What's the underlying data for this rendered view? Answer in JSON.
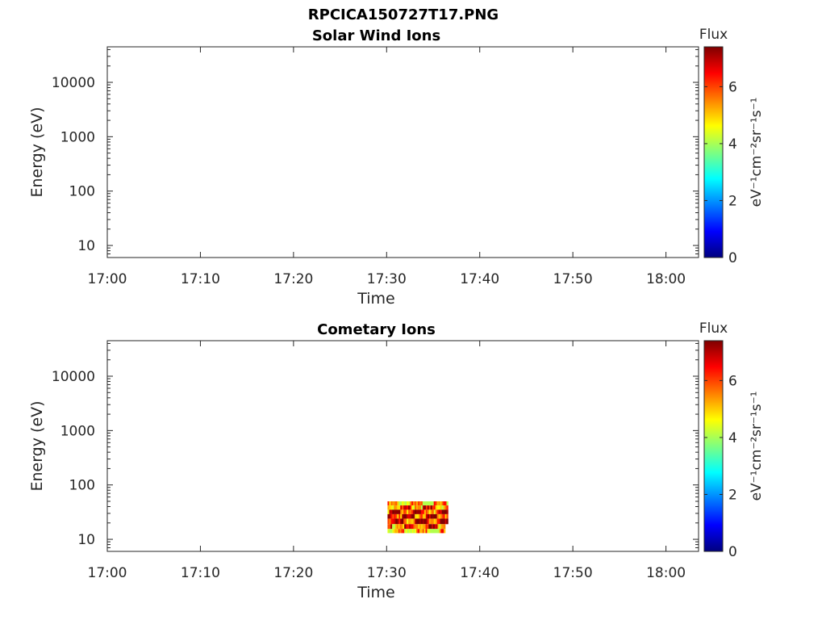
{
  "figure_title": "RPCICA150727T17.PNG",
  "colorbar_stops": [
    "#00007f",
    "#0000ff",
    "#007fff",
    "#00ffff",
    "#7fff7f",
    "#ffff00",
    "#ff7f00",
    "#ff0000",
    "#7f0000"
  ],
  "chart_data": [
    {
      "type": "heatmap",
      "title": "Solar Wind Ions",
      "xlabel": "Time",
      "ylabel": "Energy (eV)",
      "x_ticks": [
        "17:00",
        "17:10",
        "17:20",
        "17:30",
        "17:40",
        "17:50",
        "18:00"
      ],
      "x_range_min": [
        0,
        63.5
      ],
      "y_scale": "log",
      "y_ticks": [
        "10",
        "100",
        "1000",
        "10000"
      ],
      "y_range": [
        6,
        45000
      ],
      "colorbar": {
        "title": "Flux",
        "label": "eV⁻¹cm⁻²sr⁻¹s⁻¹",
        "ticks": [
          "0",
          "2",
          "4",
          "6"
        ],
        "range": [
          0,
          7.4
        ]
      },
      "cells": []
    },
    {
      "type": "heatmap",
      "title": "Cometary Ions",
      "xlabel": "Time",
      "ylabel": "Energy (eV)",
      "x_ticks": [
        "17:00",
        "17:10",
        "17:20",
        "17:30",
        "17:40",
        "17:50",
        "18:00"
      ],
      "x_range_min": [
        0,
        63.5
      ],
      "y_scale": "log",
      "y_ticks": [
        "10",
        "100",
        "1000",
        "10000"
      ],
      "y_range": [
        6,
        45000
      ],
      "colorbar": {
        "title": "Flux",
        "label": "eV⁻¹cm⁻²sr⁻¹s⁻¹",
        "ticks": [
          "0",
          "2",
          "4",
          "6"
        ],
        "range": [
          0,
          7.4
        ]
      },
      "cells": [
        {
          "t": [
            30.1,
            36.6
          ],
          "e": [
            42,
            50
          ],
          "flux": 5.2
        },
        {
          "t": [
            30.1,
            36.6
          ],
          "e": [
            35,
            42
          ],
          "flux": 6.3
        },
        {
          "t": [
            30.1,
            36.6
          ],
          "e": [
            29,
            35
          ],
          "flux": 6.8
        },
        {
          "t": [
            30.1,
            36.6
          ],
          "e": [
            24,
            29
          ],
          "flux": 7.1
        },
        {
          "t": [
            30.1,
            36.6
          ],
          "e": [
            19,
            24
          ],
          "flux": 6.9
        },
        {
          "t": [
            30.1,
            36.3
          ],
          "e": [
            15.5,
            19
          ],
          "flux": 6.2
        },
        {
          "t": [
            30.1,
            36.3
          ],
          "e": [
            13,
            15.5
          ],
          "flux": 5.3
        }
      ]
    }
  ]
}
